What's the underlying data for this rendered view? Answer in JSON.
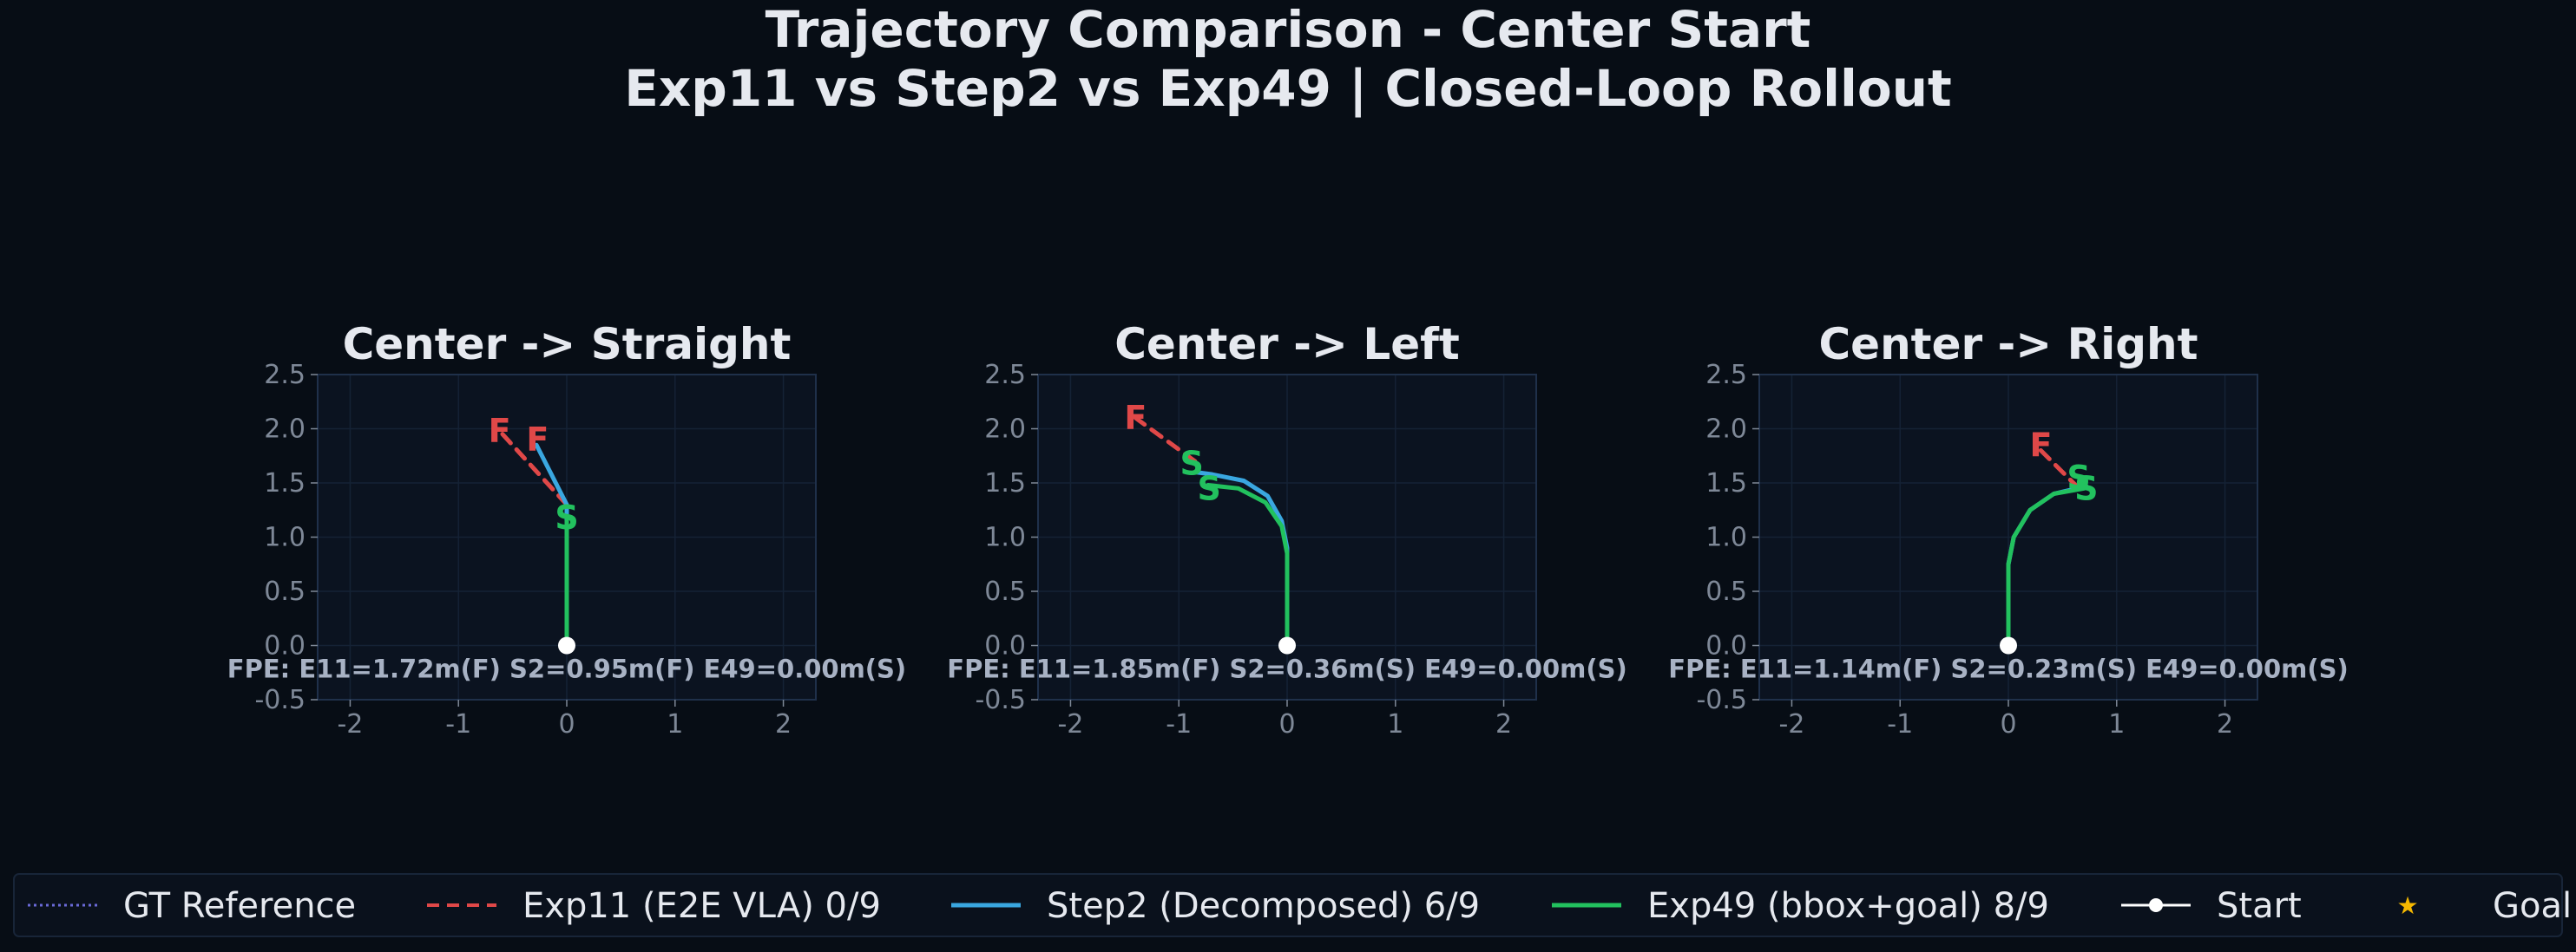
{
  "title_line1": "Trajectory Comparison - Center Start",
  "title_line2": "Exp11 vs Step2 vs Exp49 | Closed-Loop Rollout",
  "colors": {
    "background": "#070d15",
    "axes_bg": "#0b1320",
    "axes_border": "#1f304a",
    "grid": "#152235",
    "tick_text": "#7e8897",
    "title_text": "#e6e9ef",
    "annotation_text": "#a8b2c4",
    "exp11": "#e04848",
    "step2": "#3aa7e0",
    "exp49": "#22c15e",
    "gt": "#6a6ad8",
    "start": "#ffffff",
    "goal": "#f5b800"
  },
  "legend": [
    {
      "label": "GT Reference",
      "style": "dotted",
      "color": "#6a6ad8"
    },
    {
      "label": "Exp11 (E2E VLA) 0/9",
      "style": "dashed",
      "color": "#e04848"
    },
    {
      "label": "Step2 (Decomposed) 6/9",
      "style": "solid",
      "color": "#3aa7e0"
    },
    {
      "label": "Exp49 (bbox+goal) 8/9",
      "style": "solid",
      "color": "#22c15e"
    },
    {
      "label": "Start",
      "style": "marker-line",
      "color": "#ffffff"
    },
    {
      "label": "Goal",
      "style": "star",
      "color": "#f5b800"
    }
  ],
  "chart_data": [
    {
      "type": "line",
      "title": "Center -> Straight",
      "xlim": [
        -2.3,
        2.3
      ],
      "ylim": [
        -0.5,
        2.5
      ],
      "xticks": [
        -2,
        -1,
        0,
        1,
        2
      ],
      "xtick_labels": [
        "-2",
        "-1",
        "0",
        "1",
        "2"
      ],
      "yticks": [
        -0.5,
        0.0,
        0.5,
        1.0,
        1.5,
        2.0,
        2.5
      ],
      "ytick_labels": [
        "-0.5",
        "0.0",
        "0.5",
        "1.0",
        "1.5",
        "2.0",
        "2.5"
      ],
      "grid": true,
      "start": [
        0,
        0
      ],
      "series": [
        {
          "name": "Exp11 (E2E VLA) 0/9",
          "key": "exp11",
          "points": [
            [
              0,
              1.3
            ],
            [
              -0.62,
              1.98
            ]
          ]
        },
        {
          "name": "Step2 (Decomposed) 6/9",
          "key": "step2",
          "points": [
            [
              0,
              0
            ],
            [
              0,
              1.3
            ],
            [
              -0.28,
              1.85
            ]
          ]
        },
        {
          "name": "Exp49 (bbox+goal) 8/9",
          "key": "exp49",
          "points": [
            [
              0,
              0
            ],
            [
              0,
              1.15
            ]
          ]
        }
      ],
      "markers": [
        {
          "text": "F",
          "x": -0.62,
          "y": 1.98,
          "key": "exp11"
        },
        {
          "text": "F",
          "x": -0.27,
          "y": 1.9,
          "key": "exp11"
        },
        {
          "text": "S",
          "x": 0.0,
          "y": 1.18,
          "key": "exp49"
        }
      ],
      "annotation": "FPE: E11=1.72m(F)  S2=0.95m(F)  E49=0.00m(S)"
    },
    {
      "type": "line",
      "title": "Center -> Left",
      "xlim": [
        -2.3,
        2.3
      ],
      "ylim": [
        -0.5,
        2.5
      ],
      "xticks": [
        -2,
        -1,
        0,
        1,
        2
      ],
      "xtick_labels": [
        "-2",
        "-1",
        "0",
        "1",
        "2"
      ],
      "yticks": [
        -0.5,
        0.0,
        0.5,
        1.0,
        1.5,
        2.0,
        2.5
      ],
      "ytick_labels": [
        "-0.5",
        "0.0",
        "0.5",
        "1.0",
        "1.5",
        "2.0",
        "2.5"
      ],
      "grid": true,
      "start": [
        0,
        0
      ],
      "series": [
        {
          "name": "Exp11 (E2E VLA) 0/9",
          "key": "exp11",
          "points": [
            [
              -0.85,
              1.7
            ],
            [
              -1.4,
              2.1
            ]
          ]
        },
        {
          "name": "Step2 (Decomposed) 6/9",
          "key": "step2",
          "points": [
            [
              0,
              0
            ],
            [
              0,
              0.9
            ],
            [
              -0.05,
              1.15
            ],
            [
              -0.18,
              1.38
            ],
            [
              -0.4,
              1.52
            ],
            [
              -0.7,
              1.58
            ],
            [
              -0.85,
              1.6
            ]
          ]
        },
        {
          "name": "Exp49 (bbox+goal) 8/9",
          "key": "exp49",
          "points": [
            [
              0,
              0
            ],
            [
              0,
              0.85
            ],
            [
              -0.05,
              1.1
            ],
            [
              -0.2,
              1.32
            ],
            [
              -0.45,
              1.45
            ],
            [
              -0.73,
              1.48
            ]
          ]
        }
      ],
      "markers": [
        {
          "text": "F",
          "x": -1.4,
          "y": 2.1,
          "key": "exp11"
        },
        {
          "text": "S",
          "x": -0.88,
          "y": 1.68,
          "key": "exp49"
        },
        {
          "text": "S",
          "x": -0.72,
          "y": 1.45,
          "key": "exp49"
        }
      ],
      "annotation": "FPE: E11=1.85m(F)  S2=0.36m(S)  E49=0.00m(S)"
    },
    {
      "type": "line",
      "title": "Center -> Right",
      "xlim": [
        -2.3,
        2.3
      ],
      "ylim": [
        -0.5,
        2.5
      ],
      "xticks": [
        -2,
        -1,
        0,
        1,
        2
      ],
      "xtick_labels": [
        "-2",
        "-1",
        "0",
        "1",
        "2"
      ],
      "yticks": [
        -0.5,
        0.0,
        0.5,
        1.0,
        1.5,
        2.0,
        2.5
      ],
      "ytick_labels": [
        "-0.5",
        "0.0",
        "0.5",
        "1.0",
        "1.5",
        "2.0",
        "2.5"
      ],
      "grid": true,
      "start": [
        0,
        0
      ],
      "series": [
        {
          "name": "Exp11 (E2E VLA) 0/9",
          "key": "exp11",
          "points": [
            [
              0.3,
              1.8
            ],
            [
              0.68,
              1.42
            ]
          ]
        },
        {
          "name": "Step2 (Decomposed) 6/9",
          "key": "step2",
          "points": [
            [
              0,
              0
            ],
            [
              0,
              0.75
            ],
            [
              0.05,
              1.0
            ],
            [
              0.2,
              1.25
            ],
            [
              0.42,
              1.4
            ],
            [
              0.72,
              1.47
            ]
          ]
        },
        {
          "name": "Exp49 (bbox+goal) 8/9",
          "key": "exp49",
          "points": [
            [
              0,
              0
            ],
            [
              0,
              0.75
            ],
            [
              0.05,
              1.0
            ],
            [
              0.2,
              1.25
            ],
            [
              0.42,
              1.4
            ],
            [
              0.7,
              1.45
            ]
          ]
        }
      ],
      "markers": [
        {
          "text": "F",
          "x": 0.3,
          "y": 1.85,
          "key": "exp11"
        },
        {
          "text": "S",
          "x": 0.65,
          "y": 1.55,
          "key": "exp49"
        },
        {
          "text": "S",
          "x": 0.72,
          "y": 1.45,
          "key": "exp49"
        }
      ],
      "annotation": "FPE: E11=1.14m(F)  S2=0.23m(S)  E49=0.00m(S)"
    }
  ]
}
